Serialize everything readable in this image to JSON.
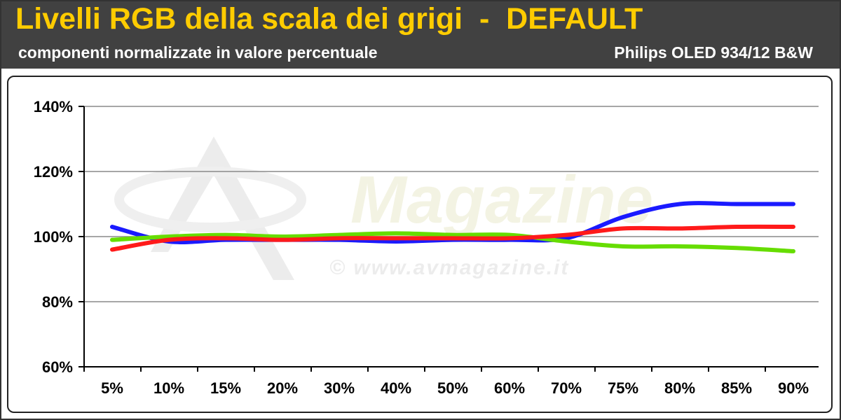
{
  "header": {
    "title": "Livelli RGB della scala dei grigi  -  DEFAULT",
    "subtitle": "componenti normalizzate in valore percentuale",
    "device": "Philips OLED 934/12 B&W"
  },
  "watermark": {
    "logo_text": "Magazine",
    "url_text": "© www.avmagazine.it"
  },
  "colors": {
    "header_bg": "#414141",
    "title": "#ffcc00",
    "blue": "#1a1aff",
    "red": "#ff1a1a",
    "green": "#66dd00"
  },
  "chart_data": {
    "type": "line",
    "categories": [
      "5%",
      "10%",
      "15%",
      "20%",
      "30%",
      "40%",
      "50%",
      "60%",
      "70%",
      "75%",
      "80%",
      "85%",
      "90%"
    ],
    "y_ticks": [
      "140%",
      "120%",
      "100%",
      "80%",
      "60%"
    ],
    "ylim": [
      60,
      140
    ],
    "grid": true,
    "series": [
      {
        "color": "blue",
        "values": [
          103,
          98.5,
          99,
          99,
          99,
          98.5,
          99,
          99,
          99.5,
          106,
          110,
          110,
          110
        ]
      },
      {
        "color": "green",
        "values": [
          99,
          100,
          100.5,
          100,
          100.5,
          101,
          100.5,
          100.5,
          98.5,
          97,
          97,
          96.5,
          95.5
        ]
      },
      {
        "color": "red",
        "values": [
          96,
          99,
          99.5,
          99,
          99.5,
          99.5,
          99.5,
          99.5,
          100.5,
          102.5,
          102.5,
          103,
          103
        ]
      }
    ]
  }
}
